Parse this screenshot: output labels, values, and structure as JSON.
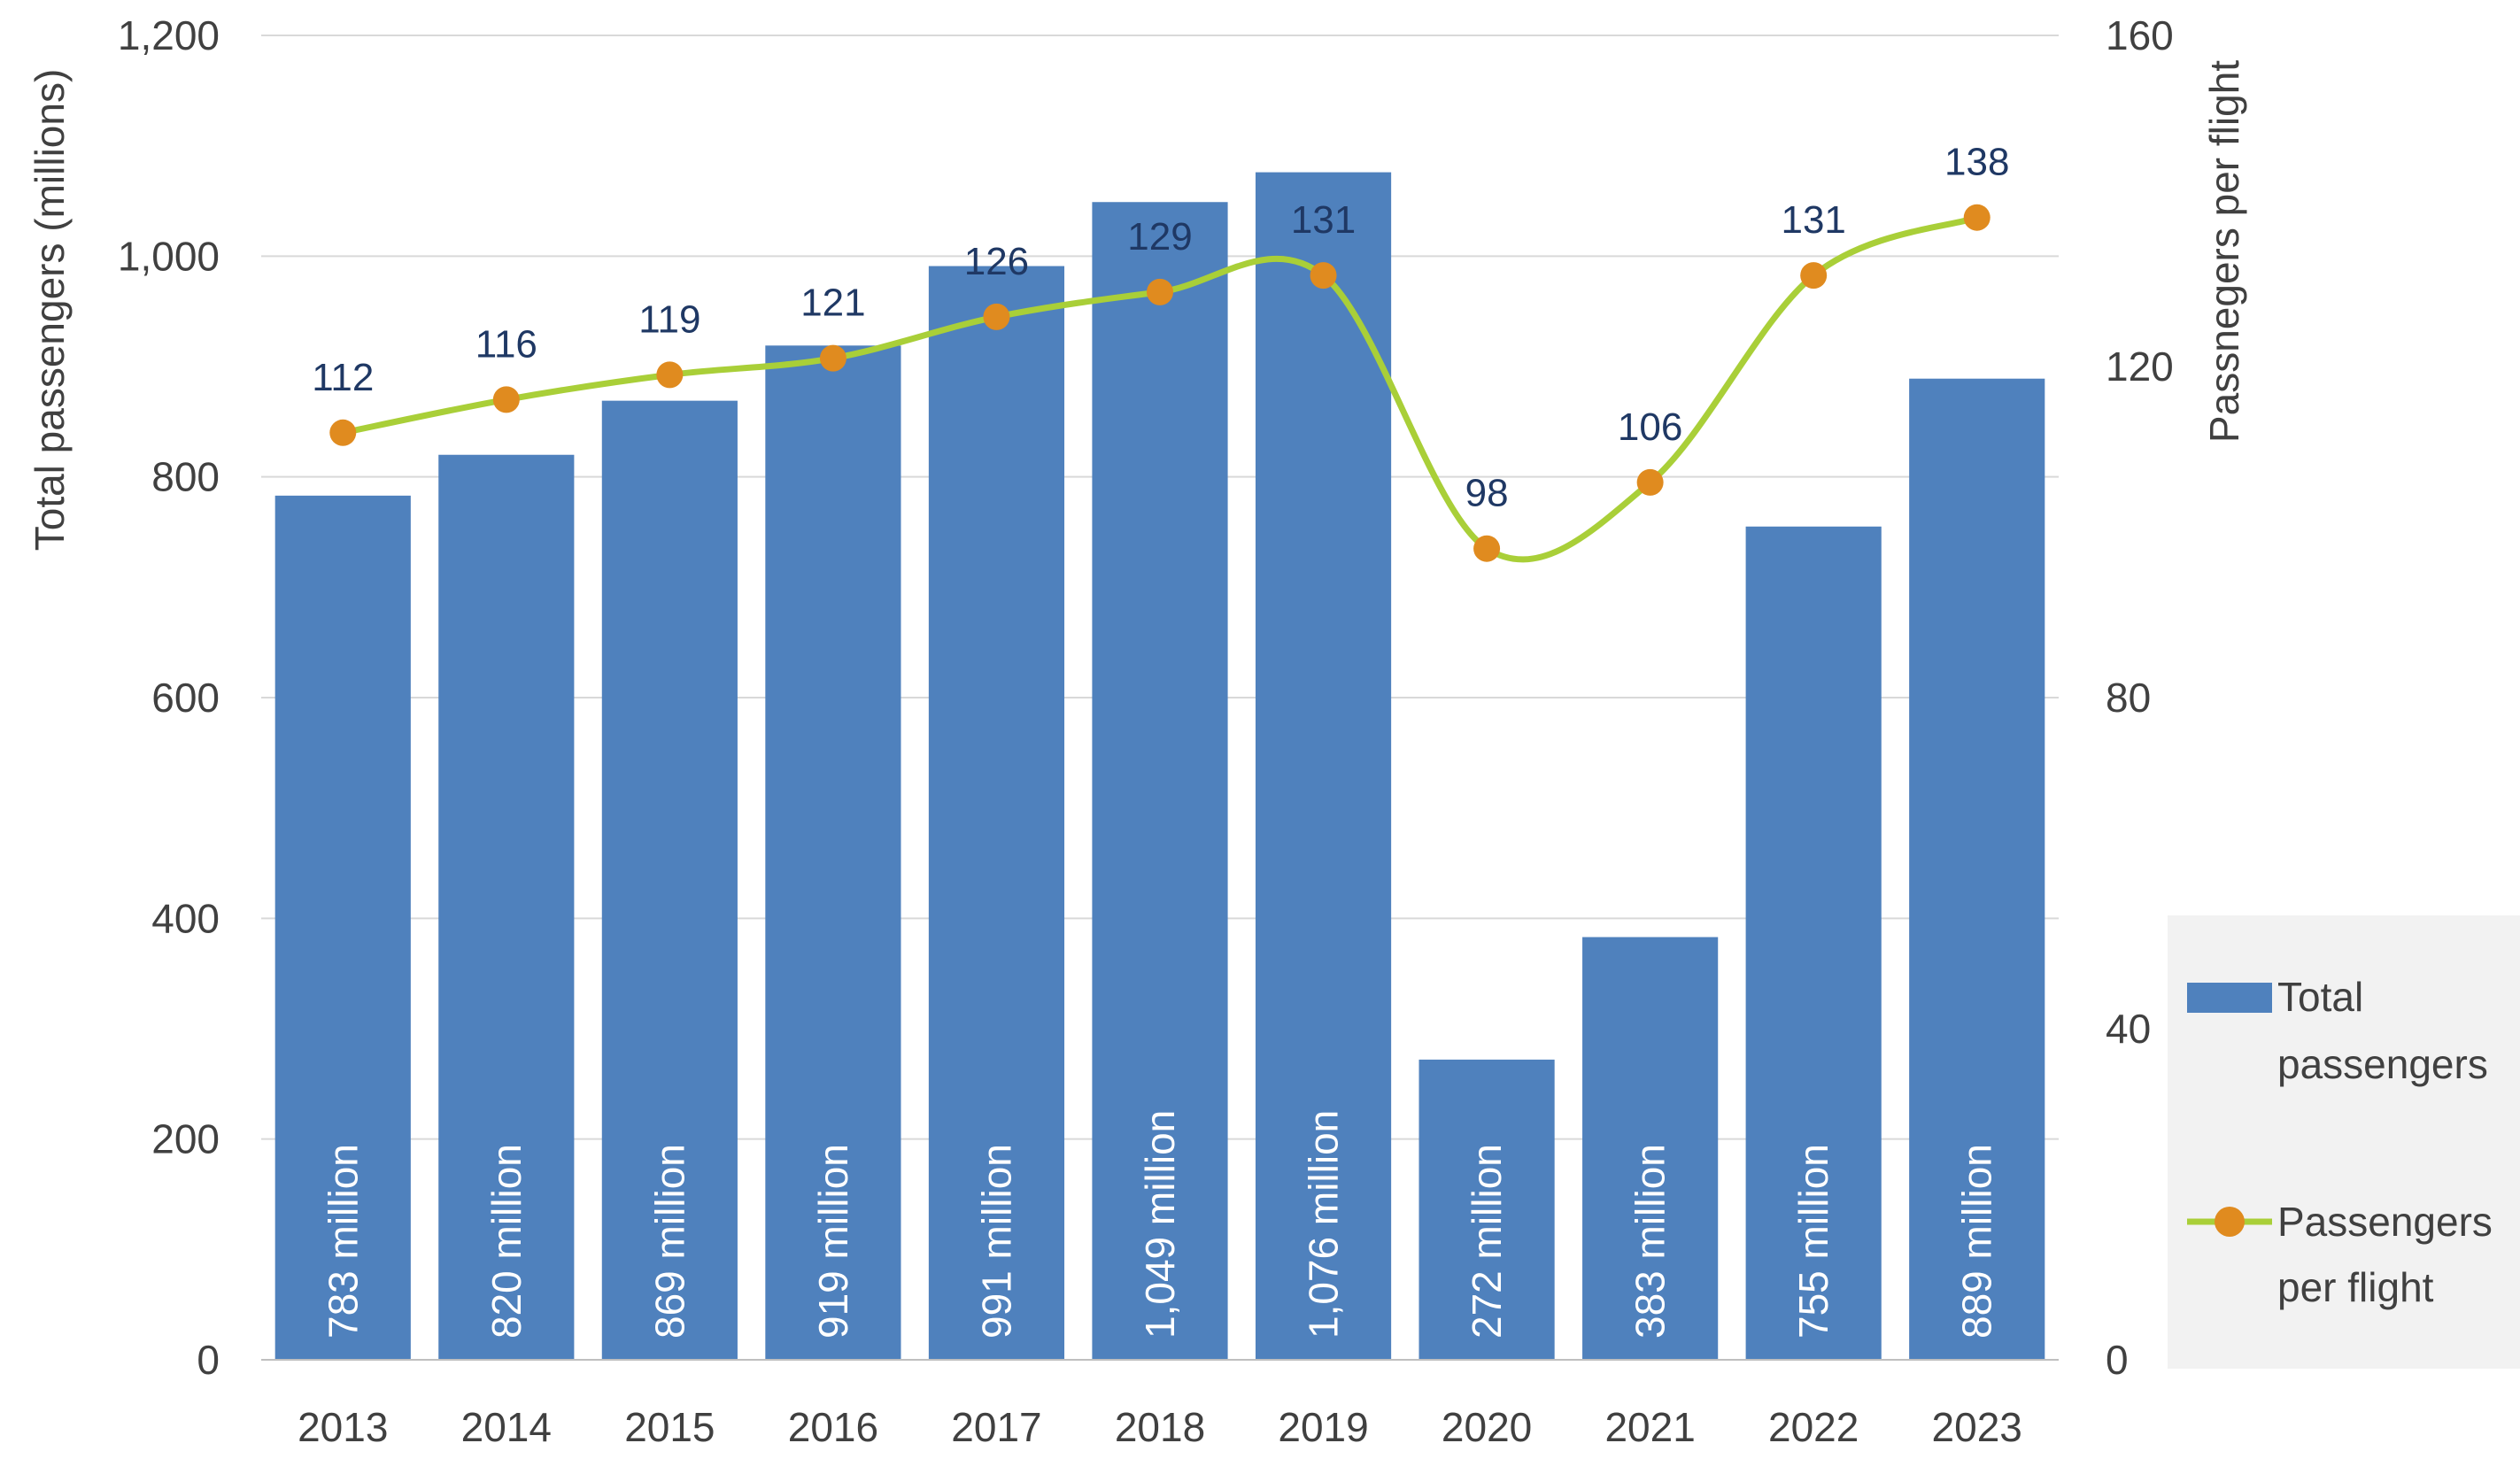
{
  "chart_data": {
    "type": "bar",
    "categories": [
      "2013",
      "2014",
      "2015",
      "2016",
      "2017",
      "2018",
      "2019",
      "2020",
      "2021",
      "2022",
      "2023"
    ],
    "series": [
      {
        "name": "Total passengers",
        "type": "bar",
        "axis": "left",
        "color": "#4f81bd",
        "values": [
          783,
          820,
          869,
          919,
          991,
          1049,
          1076,
          272,
          383,
          755,
          889
        ],
        "data_labels": [
          "783 million",
          "820 million",
          "869 million",
          "919 million",
          "991 million",
          "1,049 million",
          "1,076 million",
          "272 million",
          "383 million",
          "755 million",
          "889 million"
        ]
      },
      {
        "name": "Passengers per flight",
        "type": "line",
        "axis": "right",
        "color": "#a9cf38",
        "marker_color": "#e08b1f",
        "values": [
          112,
          116,
          119,
          121,
          126,
          129,
          131,
          98,
          106,
          131,
          138
        ],
        "data_labels": [
          "112",
          "116",
          "119",
          "121",
          "126",
          "129",
          "131",
          "98",
          "106",
          "131",
          "138"
        ]
      }
    ],
    "left_axis": {
      "title": "Total passengers (millions)",
      "ylim": [
        0,
        1200
      ],
      "ticks": [
        0,
        200,
        400,
        600,
        800,
        1000,
        1200
      ],
      "tick_labels": [
        "0",
        "200",
        "400",
        "600",
        "800",
        "1,000",
        "1,200"
      ]
    },
    "right_axis": {
      "title": "Passnegers per flight",
      "ylim": [
        0,
        160
      ],
      "ticks": [
        0,
        40,
        80,
        120,
        160
      ],
      "tick_labels": [
        "0",
        "40",
        "80",
        "120",
        "160"
      ]
    },
    "grid": true,
    "legend": {
      "position": "right",
      "items": [
        {
          "label_lines": [
            "Total",
            "passengers"
          ]
        },
        {
          "label_lines": [
            "Passengers",
            "per flight"
          ]
        }
      ]
    }
  }
}
